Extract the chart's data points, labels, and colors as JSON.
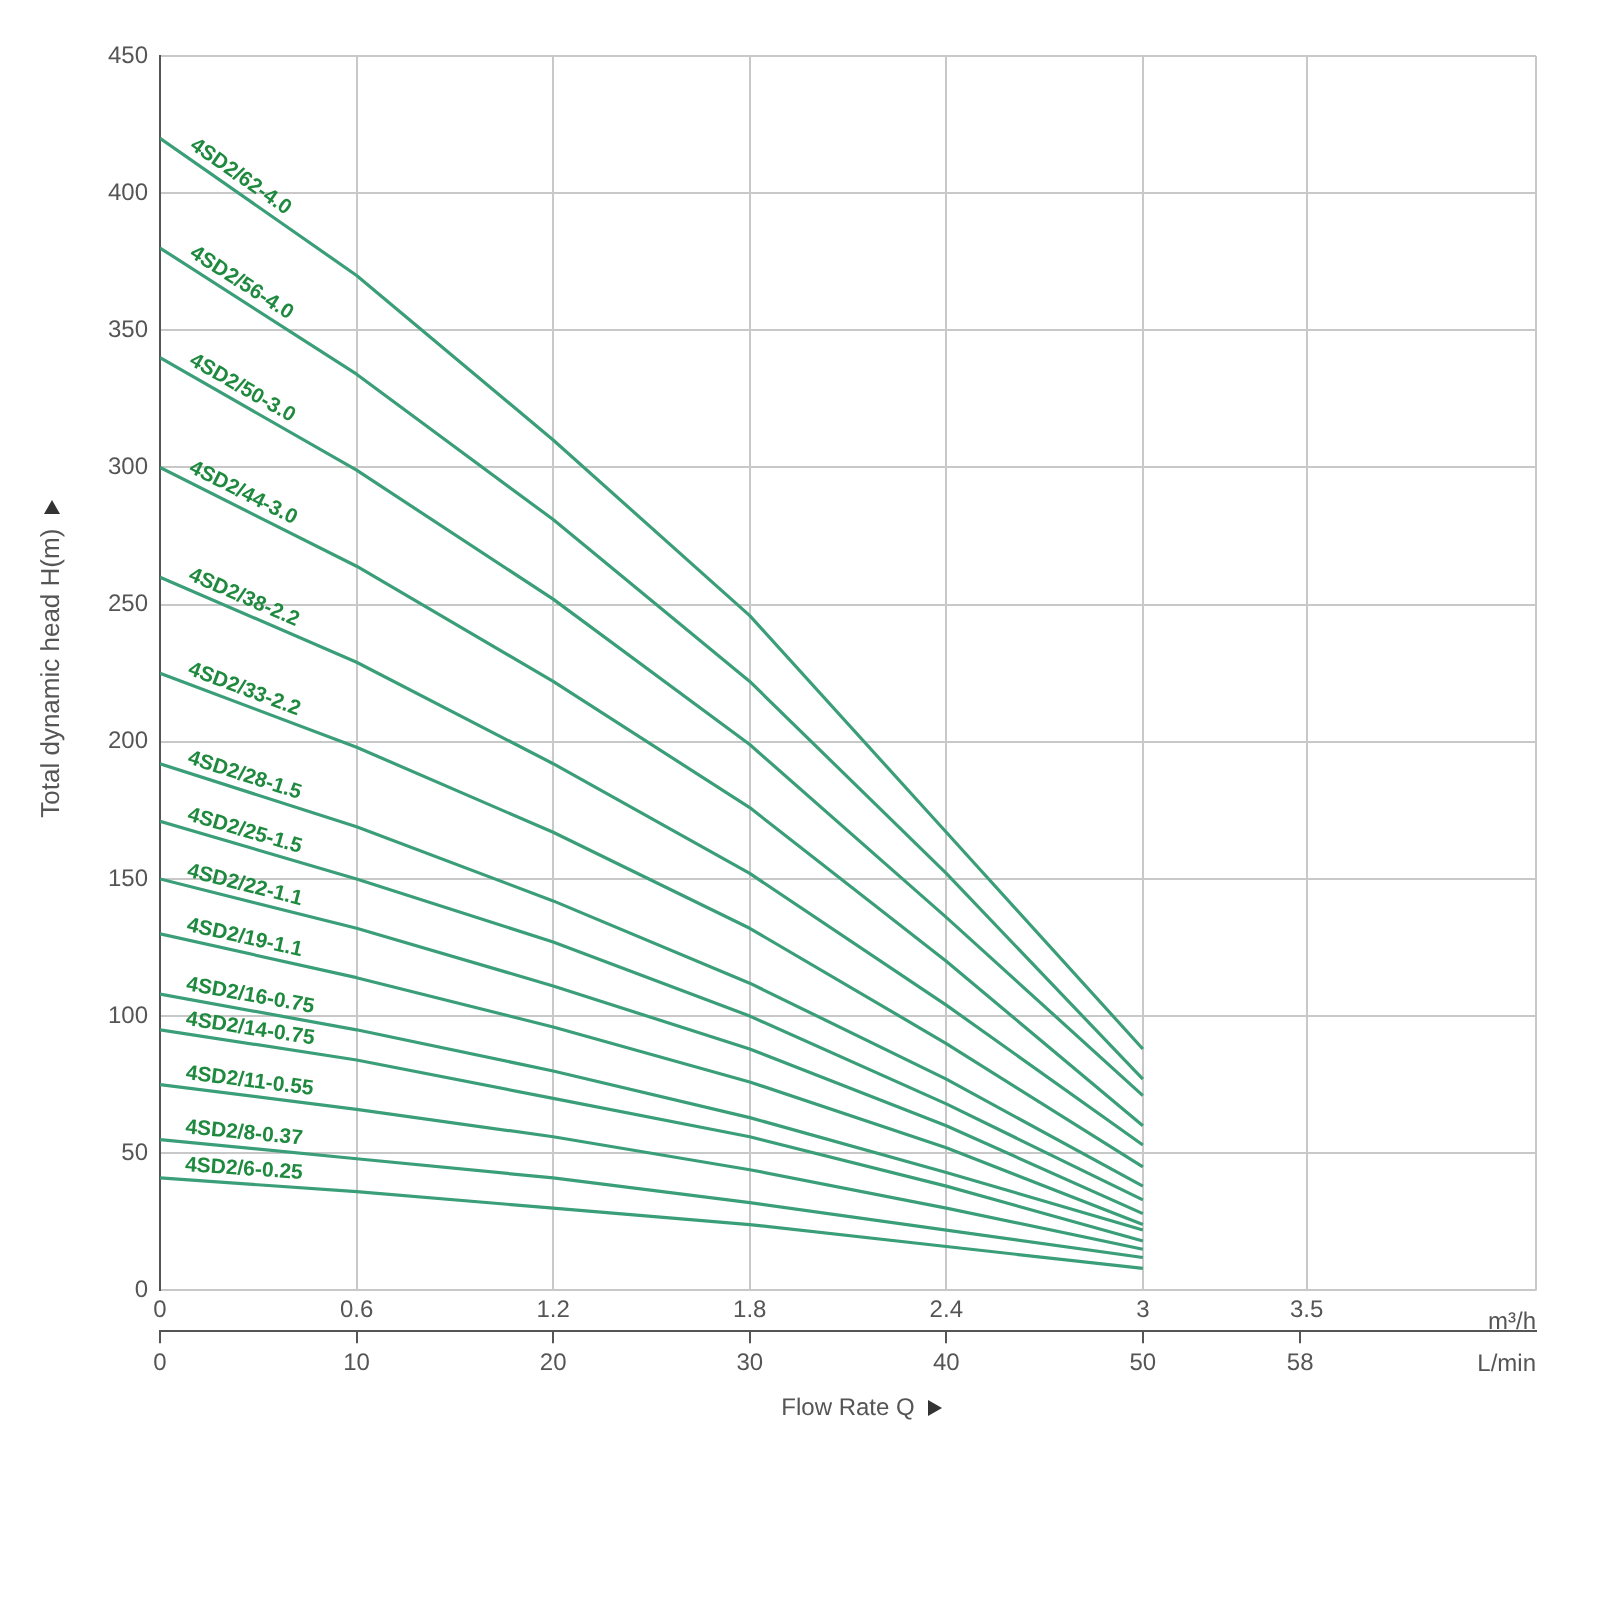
{
  "chart_data": {
    "type": "line",
    "xlabel": "m³/h",
    "x2label": "L/min",
    "ylabel": "Total dynamic head H(m)",
    "annotations": [
      "Flow Rate Q"
    ],
    "x": [
      0,
      0.6,
      1.2,
      1.8,
      2.4,
      3
    ],
    "xlim": [
      0,
      4.2
    ],
    "xticks": [
      0,
      0.6,
      1.2,
      1.8,
      2.4,
      3,
      3.5
    ],
    "x2lim": [
      0,
      70
    ],
    "x2ticks": [
      0,
      10,
      20,
      30,
      40,
      50,
      58
    ],
    "ylim": [
      0,
      450
    ],
    "yticks": [
      0,
      50,
      100,
      150,
      200,
      250,
      300,
      350,
      400,
      450
    ],
    "grid": true,
    "marker": "none",
    "line_style": "solid",
    "series": [
      {
        "name": "4SD2/62-4.0",
        "color": "#3a9e78",
        "values": [
          420,
          370,
          310,
          246,
          167,
          88
        ]
      },
      {
        "name": "4SD2/56-4.0",
        "color": "#3a9e78",
        "values": [
          380,
          334,
          281,
          222,
          152,
          77
        ]
      },
      {
        "name": "4SD2/50-3.0",
        "color": "#3a9e78",
        "values": [
          340,
          299,
          252,
          199,
          136,
          71
        ]
      },
      {
        "name": "4SD2/44-3.0",
        "color": "#3a9e78",
        "values": [
          300,
          264,
          222,
          176,
          120,
          60
        ]
      },
      {
        "name": "4SD2/38-2.2",
        "color": "#3a9e78",
        "values": [
          260,
          229,
          192,
          152,
          104,
          53
        ]
      },
      {
        "name": "4SD2/33-2.2",
        "color": "#3a9e78",
        "values": [
          225,
          198,
          167,
          132,
          90,
          45
        ]
      },
      {
        "name": "4SD2/28-1.5",
        "color": "#3a9e78",
        "values": [
          192,
          169,
          142,
          112,
          77,
          38
        ]
      },
      {
        "name": "4SD2/25-1.5",
        "color": "#3a9e78",
        "values": [
          171,
          150,
          127,
          100,
          68,
          33
        ]
      },
      {
        "name": "4SD2/22-1.1",
        "color": "#3a9e78",
        "values": [
          150,
          132,
          111,
          88,
          60,
          28
        ]
      },
      {
        "name": "4SD2/19-1.1",
        "color": "#3a9e78",
        "values": [
          130,
          114,
          96,
          76,
          52,
          24
        ]
      },
      {
        "name": "4SD2/16-0.75",
        "color": "#3a9e78",
        "values": [
          108,
          95,
          80,
          63,
          43,
          22
        ]
      },
      {
        "name": "4SD2/14-0.75",
        "color": "#3a9e78",
        "values": [
          95,
          84,
          70,
          56,
          38,
          18
        ]
      },
      {
        "name": "4SD2/11-0.55",
        "color": "#3a9e78",
        "values": [
          75,
          66,
          56,
          44,
          30,
          15
        ]
      },
      {
        "name": "4SD2/8-0.37",
        "color": "#3a9e78",
        "values": [
          55,
          48,
          41,
          32,
          22,
          12
        ]
      },
      {
        "name": "4SD2/6-0.25",
        "color": "#3a9e78",
        "values": [
          41,
          36,
          30,
          24,
          16,
          8
        ]
      }
    ]
  }
}
